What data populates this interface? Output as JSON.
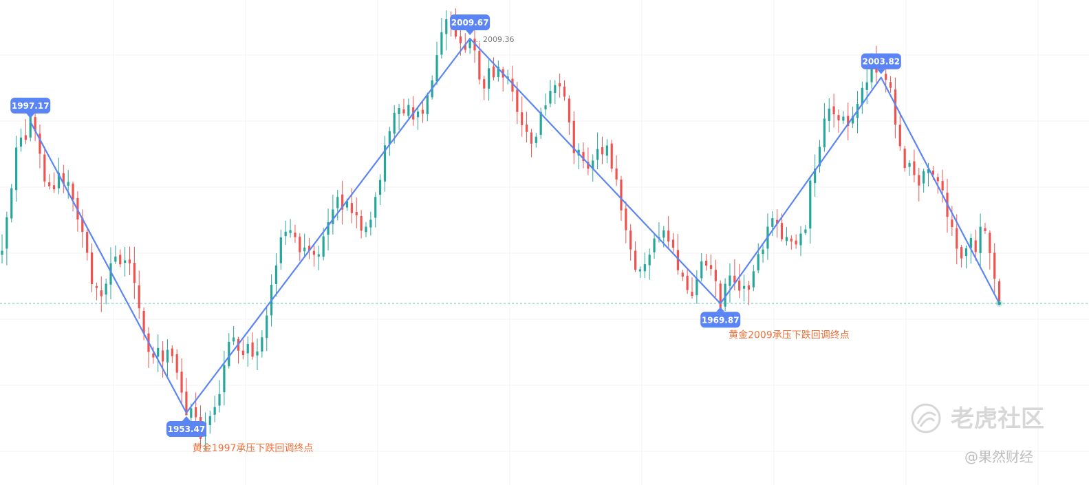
{
  "chart_data": {
    "type": "candlestick",
    "grid": true,
    "y_range": [
      1945,
      2016
    ],
    "up_color": "#26a69a",
    "down_color": "#ef5350",
    "zigzag_color": "#5b84f5",
    "annotation_color": "#f0703a",
    "current_price_marker": {
      "color": "#26a69a",
      "price": 1969.9
    },
    "pivots": [
      {
        "index": 6,
        "price": 1997.17,
        "label": "1997.17",
        "position": "above"
      },
      {
        "index": 39,
        "price": 1953.47,
        "label": "1953.47",
        "position": "below"
      },
      {
        "index": 99,
        "price": 2009.67,
        "label": "2009.67",
        "position": "above"
      },
      {
        "index": 152,
        "price": 1969.87,
        "label": "1969.87",
        "position": "below"
      },
      {
        "index": 186,
        "price": 2003.82,
        "label": "2003.82",
        "position": "above"
      },
      {
        "index": 211,
        "price": 1969.9,
        "label": "",
        "position": "none"
      }
    ],
    "price_labels": [
      {
        "index": 100,
        "price": 2009.36,
        "label": "2009.36"
      }
    ],
    "annotations": [
      {
        "index": 40,
        "text": "黄金1997承压下跌回调终点"
      },
      {
        "index": 153,
        "text": "黄金2009承压下跌回调终点"
      }
    ]
  },
  "watermark": {
    "main": "老虎社区",
    "sub": "@果然财经"
  }
}
